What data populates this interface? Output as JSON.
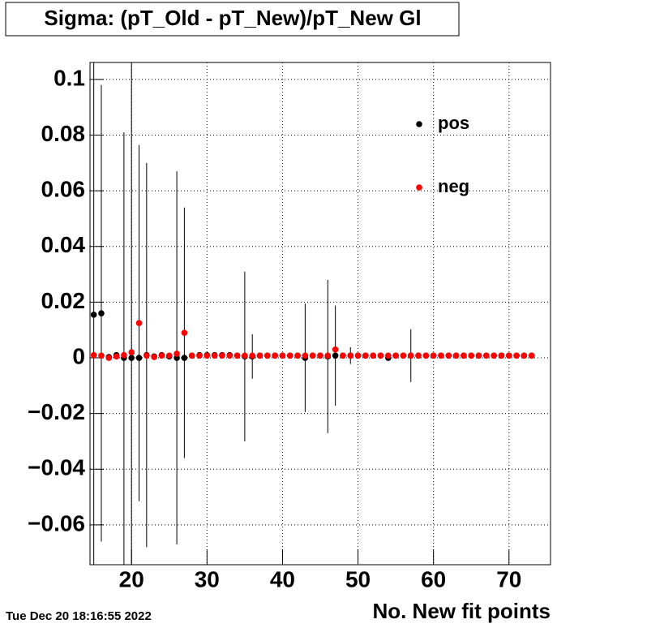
{
  "chart_data": {
    "type": "scatter",
    "title": "Sigma: (pT_Old - pT_New)/pT_New Gl",
    "x_label": "No. New fit points",
    "footer": "Tue Dec 20 18:16:55 2022",
    "x": [
      15,
      16,
      17,
      18,
      19,
      20,
      21,
      22,
      23,
      24,
      25,
      26,
      27,
      28,
      29,
      30,
      31,
      32,
      33,
      34,
      35,
      36,
      37,
      38,
      39,
      40,
      41,
      42,
      43,
      44,
      45,
      46,
      47,
      48,
      49,
      50,
      51,
      52,
      53,
      54,
      55,
      56,
      57,
      58,
      59,
      60,
      61,
      62,
      63,
      64,
      65,
      66,
      67,
      68,
      69,
      70,
      71,
      72,
      73
    ],
    "series": [
      {
        "name": "pos",
        "color": "#000000",
        "values": [
          0.0155,
          0.016,
          0.0003,
          0.001,
          0.0,
          0.0,
          0.0,
          0.001,
          0.0005,
          0.001,
          0.0005,
          0.0,
          0.0,
          0.0008,
          0.001,
          0.001,
          0.001,
          0.001,
          0.001,
          0.0008,
          0.0005,
          0.0005,
          0.0008,
          0.0008,
          0.0008,
          0.0008,
          0.0008,
          0.0008,
          0.0,
          0.0008,
          0.0008,
          0.0005,
          0.0008,
          0.0008,
          0.0008,
          0.0008,
          0.0008,
          0.0008,
          0.0008,
          0.0,
          0.0008,
          0.0008,
          0.0008,
          0.0008,
          0.0008,
          0.0008,
          0.0008,
          0.0008,
          0.0008,
          0.0008,
          0.0008,
          0.0008,
          0.0008,
          0.0008,
          0.0008,
          0.0008,
          0.0008,
          0.0008,
          0.0008
        ],
        "errors": [
          0.12,
          0.082,
          0,
          0,
          0.081,
          0.15,
          0,
          0.069,
          0,
          0,
          0,
          0.067,
          0,
          0,
          0,
          0,
          0,
          0,
          0,
          0,
          0.0305,
          0.008,
          0,
          0,
          0,
          0,
          0,
          0,
          0.0195,
          0,
          0,
          0.0275,
          0.018,
          0,
          0.003,
          0,
          0,
          0,
          0,
          0,
          0,
          0,
          0.0095,
          0,
          0,
          0,
          0,
          0,
          0,
          0,
          0,
          0,
          0,
          0,
          0,
          0,
          0,
          0,
          0
        ]
      },
      {
        "name": "neg",
        "color": "#ff0000",
        "values": [
          0.001,
          0.0008,
          0.0,
          0.0005,
          0.001,
          0.002,
          0.0125,
          0.0008,
          0.0003,
          0.0008,
          0.0008,
          0.0015,
          0.009,
          0.0008,
          0.0008,
          0.0008,
          0.0008,
          0.0008,
          0.0008,
          0.0008,
          0.0008,
          0.0008,
          0.0008,
          0.0008,
          0.0008,
          0.0008,
          0.0008,
          0.0008,
          0.0008,
          0.0008,
          0.0008,
          0.0008,
          0.003,
          0.0008,
          0.0008,
          0.0008,
          0.0008,
          0.0008,
          0.0008,
          0.0008,
          0.0008,
          0.0008,
          0.0008,
          0.0008,
          0.0008,
          0.0008,
          0.0008,
          0.0008,
          0.0008,
          0.0008,
          0.0008,
          0.0008,
          0.0008,
          0.0008,
          0.0008,
          0.0008,
          0.0008,
          0.0008,
          0.0008
        ],
        "errors": [
          0,
          0,
          0,
          0,
          0,
          0,
          0.064,
          0,
          0,
          0,
          0,
          0,
          0.045,
          0,
          0,
          0,
          0,
          0,
          0,
          0,
          0,
          0,
          0,
          0,
          0,
          0,
          0,
          0,
          0,
          0,
          0,
          0,
          0,
          0,
          0,
          0,
          0,
          0,
          0,
          0,
          0,
          0,
          0,
          0,
          0,
          0,
          0,
          0,
          0,
          0,
          0,
          0,
          0,
          0,
          0,
          0,
          0,
          0,
          0
        ]
      }
    ],
    "xlim": [
      14.5,
      75.5
    ],
    "ylim": [
      -0.0743,
      0.1061
    ],
    "xticks": [
      20,
      30,
      40,
      50,
      60,
      70
    ],
    "yticks": [
      {
        "value": -0.06,
        "label": "−0.06"
      },
      {
        "value": -0.04,
        "label": "−0.04"
      },
      {
        "value": -0.02,
        "label": "−0.02"
      },
      0,
      0.02,
      0.04,
      0.06,
      0.08,
      0.1
    ],
    "grid": true
  }
}
